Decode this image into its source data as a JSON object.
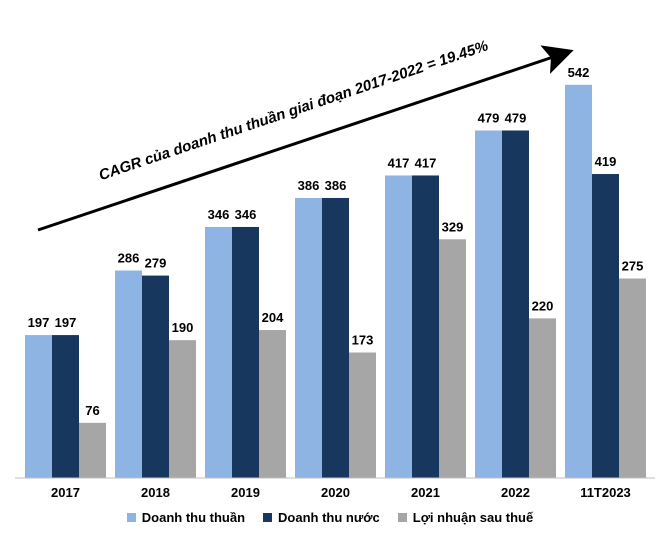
{
  "chart_data": {
    "type": "bar",
    "title": "",
    "xlabel": "",
    "ylabel": "",
    "categories": [
      "2017",
      "2018",
      "2019",
      "2020",
      "2021",
      "2022",
      "11T2023"
    ],
    "series": [
      {
        "name": "Doanh thu thuần",
        "color": "#8EB4E3",
        "values": [
          197,
          286,
          346,
          386,
          417,
          479,
          542
        ]
      },
      {
        "name": "Doanh thu nước",
        "color": "#17375E",
        "values": [
          197,
          279,
          346,
          386,
          417,
          479,
          419
        ]
      },
      {
        "name": "Lợi nhuận sau thuế",
        "color": "#A6A6A6",
        "values": [
          76,
          190,
          204,
          173,
          329,
          220,
          275
        ]
      }
    ],
    "ylim": [
      0,
      600
    ],
    "grid": false,
    "legend_position": "bottom",
    "annotation": {
      "text": "CAGR của doanh thu thuần giai đoạn 2017-2022 = 19.45%",
      "arrow": true
    }
  }
}
